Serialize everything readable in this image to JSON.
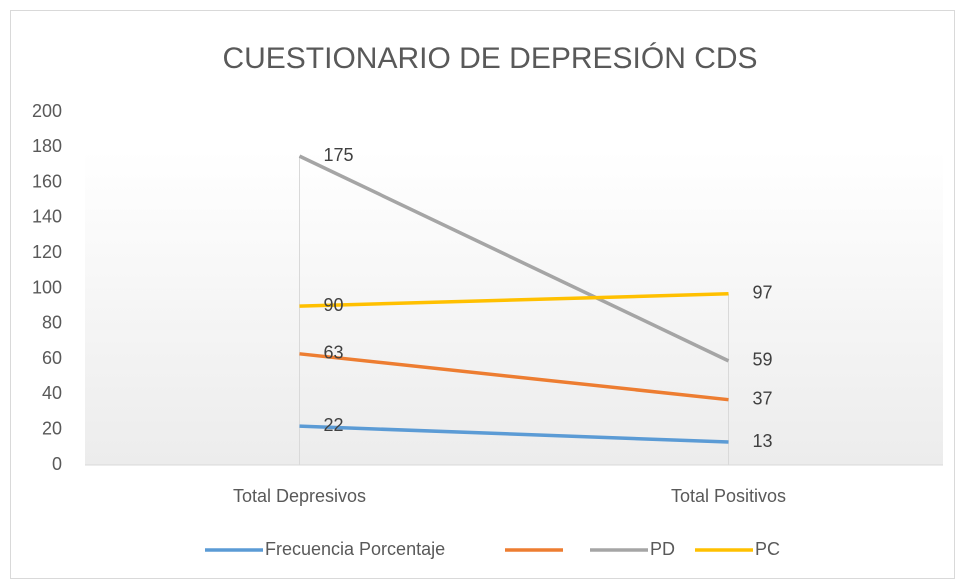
{
  "chart_data": {
    "type": "line",
    "title": "CUESTIONARIO DE DEPRESIÓN CDS",
    "categories": [
      "Total Depresivos",
      "Total Positivos"
    ],
    "series": [
      {
        "name": "Frecuencia Porcentaje",
        "color": "#5b9bd5",
        "values": [
          22,
          13
        ]
      },
      {
        "color": "#ed7d31",
        "values": [
          63,
          37
        ]
      },
      {
        "name": "PD",
        "color": "#a5a5a5",
        "values": [
          175,
          59
        ]
      },
      {
        "name": "PC",
        "color": "#ffc000",
        "values": [
          90,
          97
        ]
      }
    ],
    "ylim": [
      0,
      200
    ],
    "yticks": [
      0,
      20,
      40,
      60,
      80,
      100,
      120,
      140,
      160,
      180,
      200
    ],
    "legend": "bottom"
  }
}
